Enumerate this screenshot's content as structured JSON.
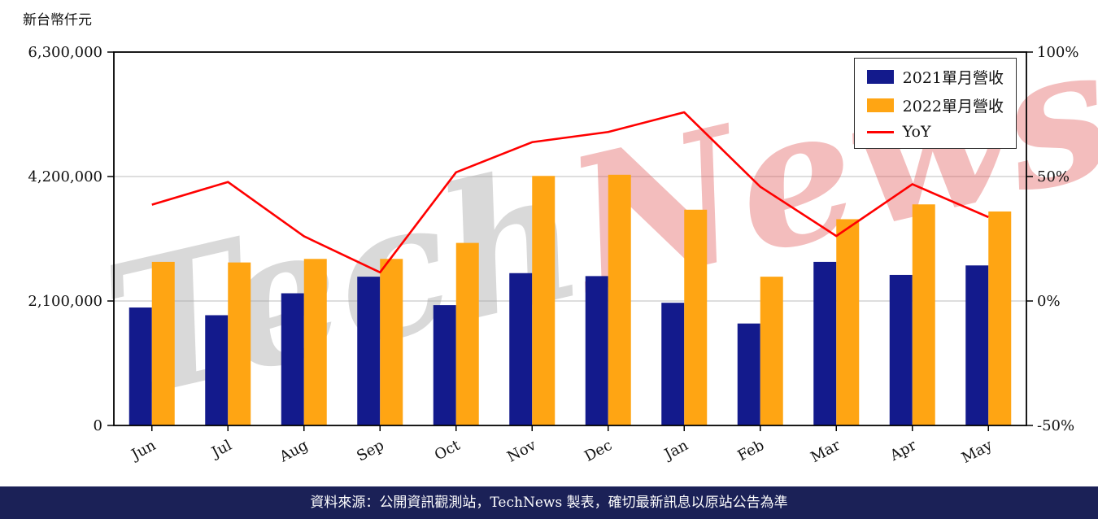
{
  "page": {
    "unit_label": "新台幣仟元",
    "footer": "資料來源：公開資訊觀測站，TechNews 製表，確切最新訊息以原站公告為準",
    "watermark_parts": [
      "Tech",
      "News"
    ]
  },
  "chart_data": {
    "type": "bar+line",
    "title": "新台幣仟元",
    "categories": [
      "Jun",
      "Jul",
      "Aug",
      "Sep",
      "Oct",
      "Nov",
      "Dec",
      "Jan",
      "Feb",
      "Mar",
      "Apr",
      "May"
    ],
    "series": [
      {
        "name": "2021單月營收",
        "type": "bar",
        "axis": "left",
        "color": "#131a8c",
        "values": [
          1990000,
          1860000,
          2230000,
          2510000,
          2030000,
          2570000,
          2520000,
          2070000,
          1720000,
          2760000,
          2540000,
          2700000
        ]
      },
      {
        "name": "2022單月營收",
        "type": "bar",
        "axis": "left",
        "color": "#ffa513",
        "values": [
          2760000,
          2750000,
          2810000,
          2810000,
          3080000,
          4210000,
          4230000,
          3640000,
          2510000,
          3480000,
          3730000,
          3610000
        ]
      },
      {
        "name": "YoY",
        "type": "line",
        "axis": "right",
        "color": "#ff0000",
        "unit": "%",
        "values": [
          38.7,
          47.8,
          26.0,
          11.5,
          51.7,
          63.8,
          67.9,
          75.8,
          45.9,
          26.1,
          46.9,
          33.7
        ]
      }
    ],
    "left_axis": {
      "label": "新台幣仟元",
      "ticks": [
        "6,300,000",
        "4,200,000",
        "2,100,000",
        "0"
      ],
      "tick_values": [
        6300000,
        4200000,
        2100000,
        0
      ],
      "min": 0,
      "max": 6300000
    },
    "right_axis": {
      "ticks": [
        "100%",
        "50%",
        "0%",
        "-50%"
      ],
      "tick_values": [
        100,
        50,
        0,
        -50
      ],
      "min": -50,
      "max": 100
    },
    "legend_position": "top-right",
    "grid": true,
    "colors": {
      "grid": "#c9c9c9",
      "axis": "#000000",
      "footer_bg": "#1b2157",
      "watermark_gray": "rgba(170,170,170,0.45)",
      "watermark_red": "rgba(225,90,90,0.40)"
    }
  }
}
